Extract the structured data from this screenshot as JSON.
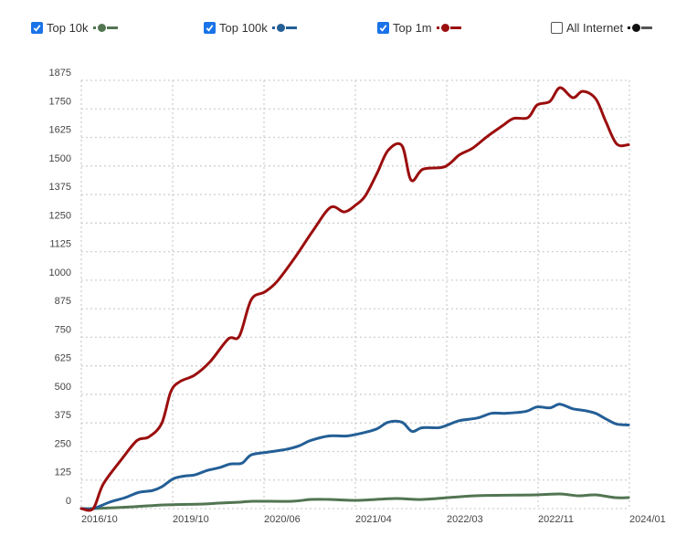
{
  "legend": [
    {
      "label": "Top 10k",
      "checked": true,
      "color": "#527552"
    },
    {
      "label": "Top 100k",
      "checked": true,
      "color": "#245f96"
    },
    {
      "label": "Top 1m",
      "checked": true,
      "color": "#9b0e0e"
    },
    {
      "label": "All Internet",
      "checked": false,
      "color": "#111111",
      "dash_color": "#555555"
    }
  ],
  "chart_data": {
    "type": "line",
    "title": "",
    "xlabel": "",
    "ylabel": "",
    "ylim": [
      0,
      1875
    ],
    "xlim": [
      0,
      60
    ],
    "grid": true,
    "legend_position": "top",
    "y_ticks": [
      0,
      125,
      250,
      375,
      500,
      625,
      750,
      875,
      1000,
      1125,
      1250,
      1375,
      1500,
      1625,
      1750,
      1875
    ],
    "x_ticks": [
      {
        "x": 0,
        "label": "2016/10"
      },
      {
        "x": 10,
        "label": "2019/10"
      },
      {
        "x": 20,
        "label": "2020/06"
      },
      {
        "x": 30,
        "label": "2021/04"
      },
      {
        "x": 40,
        "label": "2022/03"
      },
      {
        "x": 50,
        "label": "2022/11"
      },
      {
        "x": 60,
        "label": "2024/01"
      }
    ],
    "series": [
      {
        "name": "Top 1m",
        "color": "#9b0e0e",
        "points": [
          [
            0,
            0
          ],
          [
            1.3,
            0
          ],
          [
            2.4,
            107
          ],
          [
            4.4,
            215
          ],
          [
            6.1,
            298
          ],
          [
            7.4,
            314
          ],
          [
            8.8,
            373
          ],
          [
            9.8,
            512
          ],
          [
            10.8,
            556
          ],
          [
            12.4,
            584
          ],
          [
            14.1,
            643
          ],
          [
            16.1,
            743
          ],
          [
            17.3,
            755
          ],
          [
            18.6,
            914
          ],
          [
            20.1,
            949
          ],
          [
            21.4,
            993
          ],
          [
            23.4,
            1100
          ],
          [
            25.4,
            1219
          ],
          [
            27.3,
            1319
          ],
          [
            28.8,
            1299
          ],
          [
            30.1,
            1331
          ],
          [
            31.1,
            1370
          ],
          [
            32.4,
            1470
          ],
          [
            33.6,
            1569
          ],
          [
            35.1,
            1589
          ],
          [
            36.1,
            1438
          ],
          [
            37.4,
            1486
          ],
          [
            39.8,
            1497
          ],
          [
            41.4,
            1549
          ],
          [
            42.8,
            1577
          ],
          [
            44.4,
            1628
          ],
          [
            46.1,
            1676
          ],
          [
            47.3,
            1708
          ],
          [
            48.9,
            1712
          ],
          [
            49.9,
            1767
          ],
          [
            51.3,
            1783
          ],
          [
            52.4,
            1843
          ],
          [
            53.8,
            1799
          ],
          [
            54.9,
            1827
          ],
          [
            56.3,
            1795
          ],
          [
            57.4,
            1696
          ],
          [
            58.6,
            1597
          ],
          [
            59.9,
            1593
          ]
        ]
      },
      {
        "name": "Top 100k",
        "color": "#245f96",
        "points": [
          [
            0,
            0
          ],
          [
            1.3,
            0
          ],
          [
            3.1,
            28
          ],
          [
            4.8,
            48
          ],
          [
            6.3,
            71
          ],
          [
            7.8,
            79
          ],
          [
            8.8,
            95
          ],
          [
            10.1,
            131
          ],
          [
            11.4,
            143
          ],
          [
            12.4,
            147
          ],
          [
            13.8,
            167
          ],
          [
            15.1,
            179
          ],
          [
            16.3,
            195
          ],
          [
            17.6,
            199
          ],
          [
            18.6,
            235
          ],
          [
            20.4,
            247
          ],
          [
            22.4,
            259
          ],
          [
            23.8,
            274
          ],
          [
            25.1,
            298
          ],
          [
            27.1,
            318
          ],
          [
            29.1,
            318
          ],
          [
            31.1,
            334
          ],
          [
            32.4,
            350
          ],
          [
            33.6,
            378
          ],
          [
            35.1,
            378
          ],
          [
            36.2,
            338
          ],
          [
            37.3,
            354
          ],
          [
            39.1,
            354
          ],
          [
            40.1,
            366
          ],
          [
            41.4,
            385
          ],
          [
            43.4,
            397
          ],
          [
            44.9,
            417
          ],
          [
            46.4,
            417
          ],
          [
            48.6,
            425
          ],
          [
            49.9,
            445
          ],
          [
            51.3,
            441
          ],
          [
            52.4,
            457
          ],
          [
            53.8,
            437
          ],
          [
            55.1,
            429
          ],
          [
            56.3,
            417
          ],
          [
            57.4,
            393
          ],
          [
            58.6,
            370
          ],
          [
            59.9,
            366
          ]
        ]
      },
      {
        "name": "Top 10k",
        "color": "#527552",
        "points": [
          [
            0,
            0
          ],
          [
            1.3,
            0
          ],
          [
            5.8,
            8
          ],
          [
            9.1,
            16
          ],
          [
            13.4,
            20
          ],
          [
            15.1,
            24
          ],
          [
            17.4,
            28
          ],
          [
            18.8,
            32
          ],
          [
            23.1,
            32
          ],
          [
            25.1,
            40
          ],
          [
            27.1,
            40
          ],
          [
            30.1,
            36
          ],
          [
            34.4,
            44
          ],
          [
            37.4,
            40
          ],
          [
            43.1,
            56
          ],
          [
            49.8,
            60
          ],
          [
            52.4,
            64
          ],
          [
            54.4,
            56
          ],
          [
            56.3,
            60
          ],
          [
            58.4,
            48
          ],
          [
            59.9,
            48
          ]
        ]
      }
    ]
  }
}
